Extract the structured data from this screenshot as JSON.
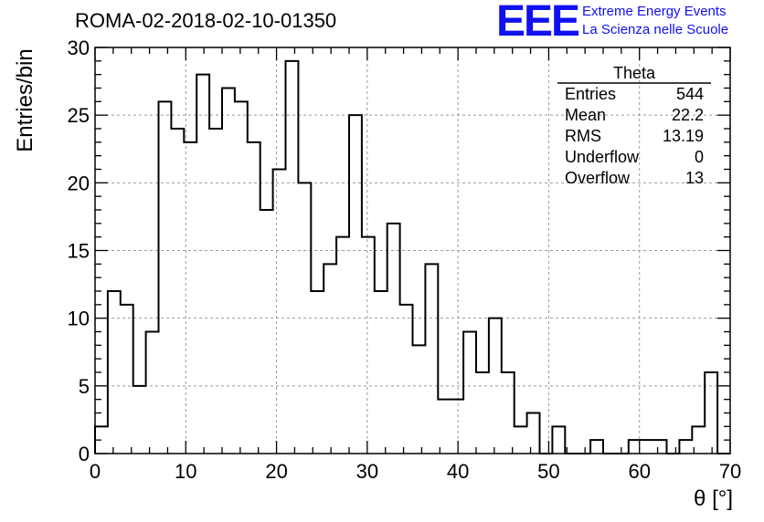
{
  "header": {
    "run_title": "ROMA-02-2018-02-10-01350",
    "logo_text": "EEE",
    "logo_line1": "Extreme Energy Events",
    "logo_line2": "La Scienza nelle Scuole",
    "logo_color": "#1010f0"
  },
  "stats": {
    "title": "Theta",
    "rows": [
      {
        "label": "Entries",
        "value": "544"
      },
      {
        "label": "Mean",
        "value": "22.2"
      },
      {
        "label": "RMS",
        "value": "13.19"
      },
      {
        "label": "Underflow",
        "value": "0"
      },
      {
        "label": "Overflow",
        "value": "13"
      }
    ]
  },
  "chart_data": {
    "type": "bar",
    "style": "step-histogram",
    "title": "ROMA-02-2018-02-10-01350",
    "xlabel": "θ [°]",
    "ylabel": "Entries/bin",
    "xlim": [
      0,
      70
    ],
    "ylim": [
      0,
      30
    ],
    "bin_width": 1.4,
    "x_ticks": [
      0,
      10,
      20,
      30,
      40,
      50,
      60,
      70
    ],
    "y_ticks": [
      0,
      5,
      10,
      15,
      20,
      25,
      30
    ],
    "grid": true,
    "series": [
      {
        "values": [
          2,
          12,
          11,
          5,
          9,
          26,
          24,
          23,
          28,
          24,
          27,
          26,
          23,
          18,
          21,
          29,
          20,
          12,
          14,
          16,
          25,
          16,
          12,
          17,
          11,
          8,
          14,
          4,
          4,
          9,
          6,
          10,
          6,
          2,
          3,
          0,
          2,
          0,
          0,
          1,
          0,
          0,
          1,
          1,
          1,
          0,
          1,
          2,
          6,
          0
        ]
      }
    ]
  }
}
